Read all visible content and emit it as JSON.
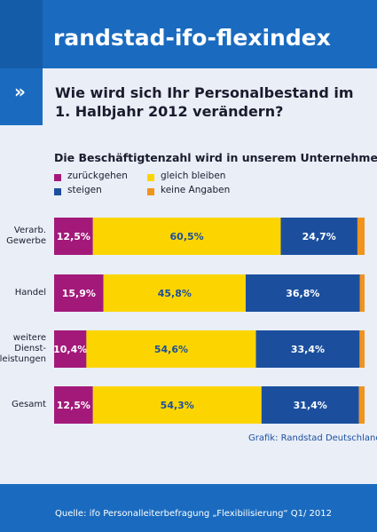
{
  "header": {
    "title": "randstad-ifo-flexindex"
  },
  "question": {
    "marker": "»",
    "line1": "Wie wird sich Ihr Personalbestand im",
    "line2": "1. Halbjahr 2012 verändern?"
  },
  "subtitle": "Die Beschäftigtenzahl wird in unserem Unternehmen …",
  "colors": {
    "zurueckgehen": "#a3197a",
    "gleich_bleiben": "#fcd500",
    "steigen": "#1b4f9e",
    "keine_angaben": "#f0941e",
    "header_blue": "#1a6bbf"
  },
  "legend": [
    {
      "label": "zurückgehen",
      "color": "#a3197a"
    },
    {
      "label": "gleich bleiben",
      "color": "#fcd500"
    },
    {
      "label": "steigen",
      "color": "#1b4f9e"
    },
    {
      "label": "keine Angaben",
      "color": "#f0941e"
    }
  ],
  "chart_data": {
    "type": "bar",
    "orientation": "horizontal",
    "stacked": true,
    "title": "Die Beschäftigtenzahl wird in unserem Unternehmen …",
    "categories": [
      "Verarb. Gewerbe",
      "Handel",
      "weitere Dienst-leistungen",
      "Gesamt"
    ],
    "category_lines": [
      [
        "Verarb.",
        "Gewerbe"
      ],
      [
        "Handel"
      ],
      [
        "weitere",
        "Dienst-",
        "leistungen"
      ],
      [
        "Gesamt"
      ]
    ],
    "series": [
      {
        "name": "zurückgehen",
        "values": [
          12.5,
          15.9,
          10.4,
          12.5
        ],
        "labels": [
          "12,5%",
          "15,9%",
          "10,4%",
          "12,5%"
        ],
        "color": "#a3197a",
        "label_color": "#ffffff"
      },
      {
        "name": "gleich bleiben",
        "values": [
          60.5,
          45.8,
          54.6,
          54.3
        ],
        "labels": [
          "60,5%",
          "45,8%",
          "54,6%",
          "54,3%"
        ],
        "color": "#fcd500",
        "label_color": "#1b4f9e"
      },
      {
        "name": "steigen",
        "values": [
          24.7,
          36.8,
          33.4,
          31.4
        ],
        "labels": [
          "24,7%",
          "36,8%",
          "33,4%",
          "31,4%"
        ],
        "color": "#1b4f9e",
        "label_color": "#ffffff"
      },
      {
        "name": "keine Angaben",
        "values": [
          2.3,
          1.5,
          1.6,
          1.8
        ],
        "labels": [
          "",
          "",
          "",
          ""
        ],
        "color": "#f0941e",
        "label_color": "#ffffff"
      }
    ],
    "xlim": [
      0,
      100
    ],
    "grid": false,
    "legend_position": "top-left"
  },
  "credit": "Grafik: Randstad Deutschland",
  "footer": {
    "source": "Quelle: ifo Personalleiterbefragung „Flexibilisierung“ Q1/ 2012"
  }
}
